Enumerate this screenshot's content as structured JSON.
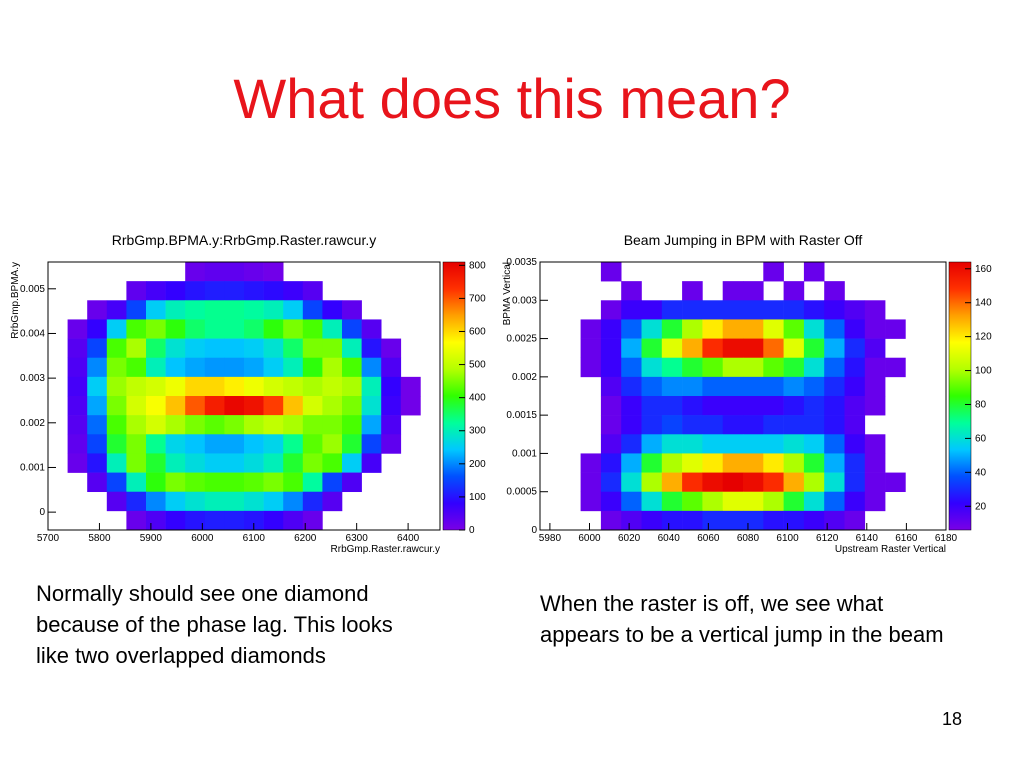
{
  "slide": {
    "title": "What does this mean?",
    "page_number": "18",
    "captions": [
      {
        "lines": [
          "Normally should see one diamond",
          "because of the phase lag. This looks",
          "like two overlapped diamonds"
        ]
      },
      {
        "lines": [
          "When the raster is off, we see what",
          "appears to be a vertical jump in the beam"
        ]
      }
    ]
  },
  "chart_data": [
    {
      "type": "heatmap",
      "title": "RrbGmp.BPMA.y:RrbGmp.Raster.rawcur.y",
      "x_label": "RrbGmp.Raster.rawcur.y",
      "y_label": "RrbGmp.BPMA.y",
      "xlim": [
        5700,
        6462
      ],
      "xticks": [
        5700,
        5800,
        5900,
        6000,
        6100,
        6200,
        6300,
        6400
      ],
      "ylim": [
        -0.0004,
        0.0056
      ],
      "yticks": [
        0,
        0.001,
        0.002,
        0.003,
        0.004,
        0.005
      ],
      "zlim": [
        0,
        810
      ],
      "zticks": [
        0,
        100,
        200,
        300,
        400,
        500,
        600,
        700,
        800
      ],
      "colorscale": [
        "#7a00e6",
        "#3200ff",
        "#0050ff",
        "#00c8ff",
        "#00ff9a",
        "#30ff00",
        "#b4ff00",
        "#ffff00",
        "#ffa000",
        "#ff3000",
        "#e60000"
      ],
      "z": [
        [
          0,
          0,
          0,
          0,
          0,
          0,
          0,
          20,
          30,
          30,
          20,
          10,
          0,
          0,
          0,
          0,
          0,
          0,
          0,
          0
        ],
        [
          0,
          0,
          0,
          0,
          30,
          60,
          80,
          100,
          110,
          110,
          100,
          90,
          70,
          40,
          0,
          0,
          0,
          0,
          0,
          0
        ],
        [
          0,
          0,
          20,
          60,
          150,
          250,
          300,
          320,
          330,
          330,
          320,
          300,
          250,
          150,
          80,
          30,
          0,
          0,
          0,
          0
        ],
        [
          0,
          20,
          80,
          250,
          420,
          450,
          400,
          350,
          330,
          330,
          350,
          400,
          450,
          420,
          300,
          150,
          40,
          0,
          0,
          0
        ],
        [
          0,
          40,
          150,
          420,
          480,
          350,
          280,
          250,
          240,
          240,
          250,
          280,
          350,
          450,
          450,
          300,
          100,
          20,
          0,
          0
        ],
        [
          0,
          50,
          200,
          450,
          420,
          300,
          240,
          220,
          210,
          210,
          220,
          250,
          300,
          400,
          480,
          420,
          200,
          50,
          0,
          0
        ],
        [
          0,
          60,
          250,
          470,
          500,
          520,
          550,
          600,
          600,
          580,
          550,
          520,
          500,
          480,
          500,
          480,
          300,
          80,
          10,
          0
        ],
        [
          0,
          50,
          220,
          450,
          520,
          560,
          620,
          700,
          760,
          800,
          780,
          720,
          620,
          520,
          480,
          450,
          280,
          70,
          10,
          0
        ],
        [
          0,
          40,
          180,
          420,
          480,
          520,
          480,
          450,
          430,
          450,
          480,
          500,
          480,
          450,
          450,
          420,
          220,
          50,
          0,
          0
        ],
        [
          0,
          30,
          150,
          380,
          450,
          330,
          260,
          240,
          220,
          220,
          240,
          260,
          330,
          430,
          470,
          380,
          150,
          30,
          0,
          0
        ],
        [
          0,
          20,
          100,
          300,
          450,
          380,
          300,
          270,
          250,
          250,
          270,
          300,
          380,
          450,
          420,
          250,
          60,
          0,
          0,
          0
        ],
        [
          0,
          0,
          40,
          150,
          300,
          400,
          450,
          430,
          420,
          420,
          430,
          450,
          420,
          320,
          150,
          50,
          0,
          0,
          0,
          0
        ],
        [
          0,
          0,
          0,
          40,
          120,
          200,
          250,
          280,
          300,
          300,
          280,
          250,
          200,
          120,
          40,
          0,
          0,
          0,
          0,
          0
        ],
        [
          0,
          0,
          0,
          0,
          20,
          50,
          80,
          100,
          110,
          110,
          100,
          80,
          50,
          20,
          0,
          0,
          0,
          0,
          0,
          0
        ]
      ]
    },
    {
      "type": "heatmap",
      "title": "Beam Jumping in BPM with Raster Off",
      "x_label": "Upstream Raster Vertical",
      "y_label": "BPMA Vertical",
      "xlim": [
        5975,
        6180
      ],
      "xticks": [
        5980,
        6000,
        6020,
        6040,
        6060,
        6080,
        6100,
        6120,
        6140,
        6160,
        6180
      ],
      "ylim": [
        0,
        0.0035
      ],
      "yticks": [
        0,
        0.0005,
        0.001,
        0.0015,
        0.002,
        0.0025,
        0.003,
        0.0035
      ],
      "zlim": [
        6,
        164
      ],
      "zticks": [
        20,
        40,
        60,
        80,
        100,
        120,
        140,
        160
      ],
      "colorscale": [
        "#7a00e6",
        "#3200ff",
        "#0050ff",
        "#00c8ff",
        "#00ff9a",
        "#30ff00",
        "#b4ff00",
        "#ffff00",
        "#ffa000",
        "#ff3000",
        "#e60000"
      ],
      "z": [
        [
          0,
          0,
          0,
          10,
          0,
          0,
          0,
          0,
          0,
          0,
          0,
          10,
          0,
          10,
          0,
          0,
          0,
          0,
          0,
          0
        ],
        [
          0,
          0,
          0,
          0,
          10,
          0,
          0,
          10,
          0,
          10,
          10,
          0,
          10,
          0,
          10,
          0,
          0,
          0,
          0,
          0
        ],
        [
          0,
          0,
          0,
          10,
          20,
          20,
          30,
          30,
          30,
          30,
          30,
          30,
          30,
          25,
          20,
          15,
          10,
          0,
          0,
          0
        ],
        [
          0,
          0,
          10,
          20,
          40,
          60,
          80,
          100,
          120,
          130,
          130,
          110,
          90,
          60,
          40,
          20,
          10,
          10,
          0,
          0
        ],
        [
          0,
          0,
          10,
          20,
          50,
          80,
          110,
          130,
          150,
          160,
          160,
          140,
          110,
          80,
          50,
          30,
          15,
          0,
          0,
          0
        ],
        [
          0,
          0,
          10,
          20,
          40,
          60,
          70,
          80,
          90,
          100,
          100,
          90,
          80,
          60,
          40,
          25,
          10,
          10,
          0,
          0
        ],
        [
          0,
          0,
          0,
          15,
          30,
          40,
          45,
          45,
          40,
          40,
          40,
          40,
          45,
          40,
          30,
          20,
          10,
          0,
          0,
          0
        ],
        [
          0,
          0,
          0,
          10,
          20,
          30,
          30,
          25,
          20,
          20,
          20,
          20,
          25,
          30,
          25,
          15,
          10,
          0,
          0,
          0
        ],
        [
          0,
          0,
          0,
          10,
          20,
          30,
          35,
          30,
          30,
          25,
          25,
          30,
          30,
          30,
          25,
          15,
          0,
          0,
          0,
          0
        ],
        [
          0,
          0,
          0,
          15,
          30,
          50,
          60,
          60,
          55,
          55,
          55,
          55,
          60,
          55,
          40,
          20,
          10,
          0,
          0,
          0
        ],
        [
          0,
          0,
          10,
          25,
          50,
          80,
          100,
          110,
          120,
          130,
          130,
          120,
          100,
          80,
          50,
          30,
          10,
          0,
          0,
          0
        ],
        [
          0,
          0,
          10,
          30,
          60,
          100,
          130,
          150,
          160,
          165,
          160,
          150,
          130,
          100,
          60,
          30,
          10,
          10,
          0,
          0
        ],
        [
          0,
          0,
          10,
          20,
          40,
          60,
          80,
          90,
          100,
          110,
          110,
          100,
          80,
          60,
          40,
          20,
          10,
          0,
          0,
          0
        ],
        [
          0,
          0,
          0,
          10,
          15,
          20,
          25,
          25,
          30,
          30,
          30,
          25,
          25,
          20,
          15,
          10,
          0,
          0,
          0,
          0
        ]
      ]
    }
  ]
}
